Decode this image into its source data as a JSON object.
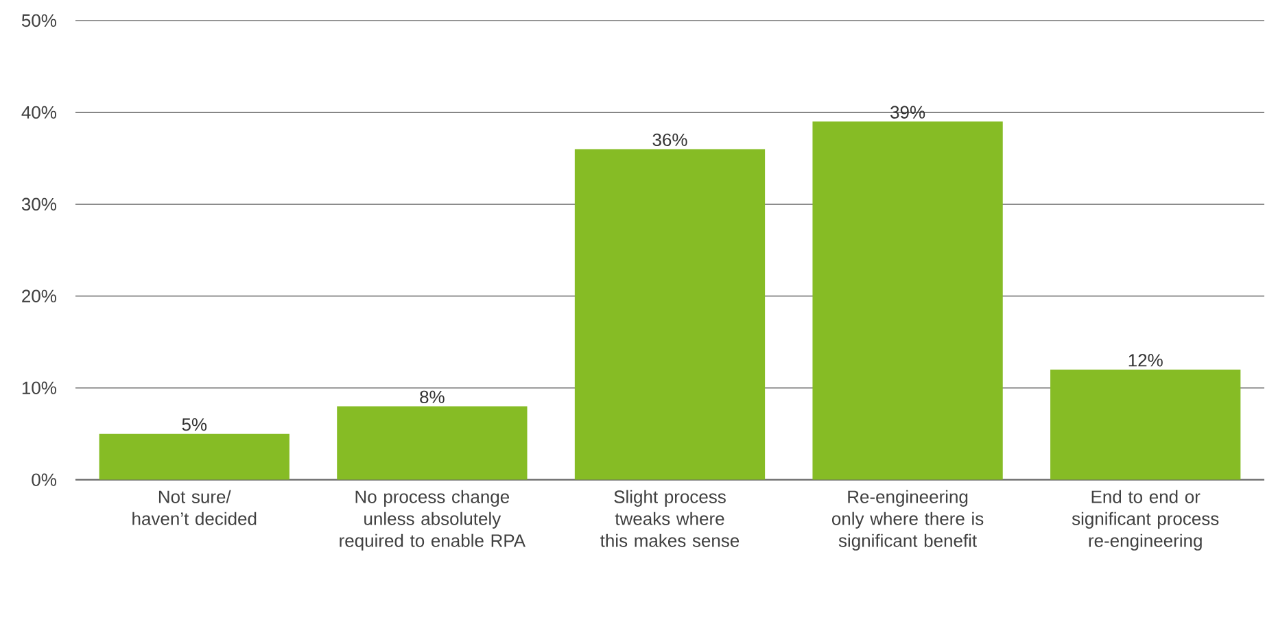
{
  "chart_data": {
    "type": "bar",
    "categories": [
      "Not sure/ haven’t decided",
      "No process change unless absolutely required to enable RPA",
      "Slight process tweaks where this makes sense",
      "Re-engineering only where there is significant benefit",
      "End to end or significant process re-engineering"
    ],
    "values": [
      5,
      8,
      36,
      39,
      12
    ],
    "value_labels": [
      "5%",
      "8%",
      "36%",
      "39%",
      "12%"
    ],
    "color": "#86bc25",
    "ylim": [
      0,
      50
    ],
    "yticks": [
      {
        "value": 0,
        "label": "0%"
      },
      {
        "value": 10,
        "label": "10%"
      },
      {
        "value": 20,
        "label": "20%"
      },
      {
        "value": 30,
        "label": "30%"
      },
      {
        "value": 40,
        "label": "40%"
      },
      {
        "value": 50,
        "label": "50%"
      }
    ],
    "grid": "y"
  }
}
